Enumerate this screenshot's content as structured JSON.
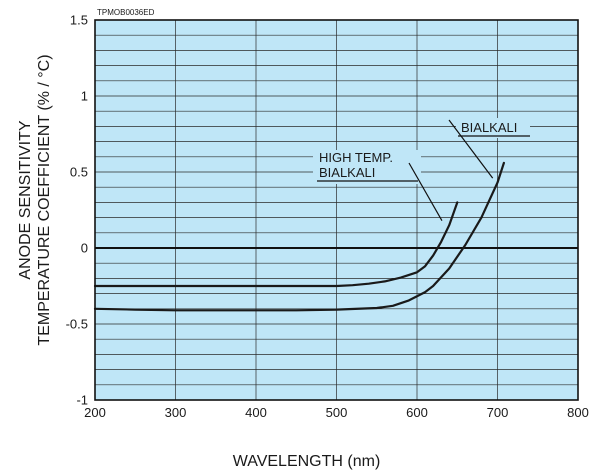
{
  "figure_code": "TPMOB0036ED",
  "chart_data": {
    "type": "line",
    "xlabel": "WAVELENGTH (nm)",
    "ylabel_lines": [
      "ANODE SENSITIVITY",
      "TEMPERATURE COEFFICIENT  (% / °C)"
    ],
    "xlim": [
      200,
      800
    ],
    "ylim": [
      -1,
      1.5
    ],
    "x_ticks": [
      200,
      300,
      400,
      500,
      600,
      700,
      800
    ],
    "y_ticks": [
      -1,
      -0.5,
      0,
      0.5,
      1,
      1.5
    ],
    "y_tick_labels": [
      "-1",
      "-0.5",
      "0",
      "0.5",
      "1",
      "1.5"
    ],
    "minor_y_step": 0.1,
    "grid": true,
    "background_color": "#bfe6f7",
    "line_color": "#1a1a1a",
    "series": [
      {
        "name_lines": [
          "HIGH TEMP.",
          "BIALKALI"
        ],
        "x": [
          200,
          250,
          300,
          350,
          400,
          450,
          500,
          520,
          540,
          560,
          580,
          600,
          610,
          620,
          630,
          640,
          650
        ],
        "y": [
          -0.25,
          -0.25,
          -0.25,
          -0.25,
          -0.25,
          -0.25,
          -0.25,
          -0.245,
          -0.235,
          -0.22,
          -0.195,
          -0.16,
          -0.12,
          -0.05,
          0.04,
          0.15,
          0.3
        ]
      },
      {
        "name_lines": [
          "BIALKALI"
        ],
        "x": [
          200,
          250,
          300,
          350,
          400,
          450,
          500,
          550,
          570,
          590,
          610,
          620,
          640,
          660,
          680,
          700,
          708
        ],
        "y": [
          -0.4,
          -0.405,
          -0.41,
          -0.41,
          -0.41,
          -0.41,
          -0.405,
          -0.395,
          -0.38,
          -0.345,
          -0.29,
          -0.25,
          -0.135,
          0.02,
          0.2,
          0.43,
          0.56
        ]
      }
    ]
  }
}
